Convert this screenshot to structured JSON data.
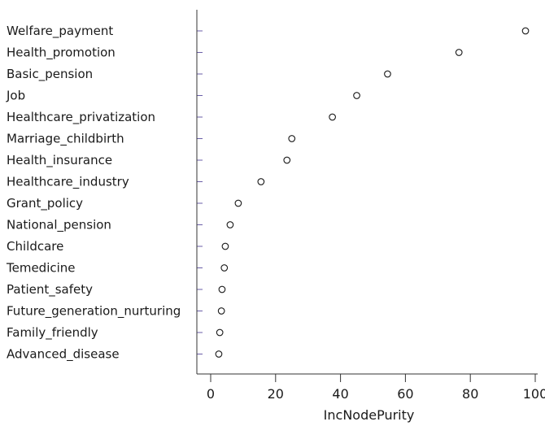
{
  "chart_data": {
    "type": "scatter",
    "title": "",
    "xlabel": "IncNodePurity",
    "ylabel": "",
    "xlim": [
      -4,
      100
    ],
    "xticks": [
      0,
      20,
      40,
      60,
      80,
      100
    ],
    "grid": false,
    "legend": "none",
    "categories": [
      "Welfare_payment",
      "Health_promotion",
      "Basic_pension",
      "Job",
      "Healthcare_privatization",
      "Marriage_childbirth",
      "Health_insurance",
      "Healthcare_industry",
      "Grant_policy",
      "National_pension",
      "Childcare",
      "Temedicine",
      "Patient_safety",
      "Future_generation_nurturing",
      "Family_friendly",
      "Advanced_disease"
    ],
    "values": [
      97,
      76.5,
      54.5,
      45,
      37.5,
      25,
      23.5,
      15.5,
      8.5,
      6,
      4.5,
      4.2,
      3.5,
      3.3,
      2.8,
      2.5
    ],
    "colors": {
      "axis": "#333333",
      "tick_mark": "#6b5fa8",
      "point": "#1a1a1a"
    }
  }
}
